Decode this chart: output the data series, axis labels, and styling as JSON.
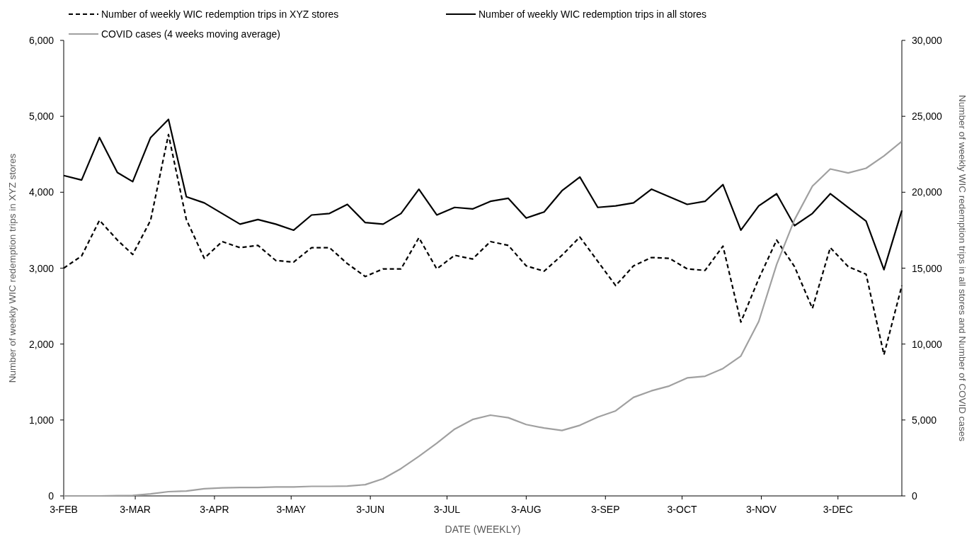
{
  "chart_data": {
    "type": "line",
    "xlabel": "DATE (WEEKLY)",
    "ylabel": "Number of weekly WIC redemption trips in XYZ stores",
    "y2label": "Number of weekly WIC redemption trips in all stores and Number of COVID cases",
    "x": [
      "--02-03",
      "--02-10",
      "--02-17",
      "--02-24",
      "--03-02",
      "--03-09",
      "--03-16",
      "--03-23",
      "--03-30",
      "--04-06",
      "--04-13",
      "--04-20",
      "--04-27",
      "--05-04",
      "--05-11",
      "--05-18",
      "--05-25",
      "--06-01",
      "--06-08",
      "--06-15",
      "--06-22",
      "--06-29",
      "--07-06",
      "--07-13",
      "--07-20",
      "--07-27",
      "--08-03",
      "--08-10",
      "--08-17",
      "--08-24",
      "--08-31",
      "--09-07",
      "--09-14",
      "--09-21",
      "--09-28",
      "--10-05",
      "--10-12",
      "--10-19",
      "--10-26",
      "--11-02",
      "--11-09",
      "--11-16",
      "--11-23",
      "--11-30",
      "--12-07",
      "--12-14",
      "--12-21",
      "--12-28"
    ],
    "xlim": [
      "--02-03",
      "--12-28"
    ],
    "xticks": [
      {
        "value": "--02-03",
        "label": "3-FEB"
      },
      {
        "value": "--03-03",
        "label": "3-MAR"
      },
      {
        "value": "--04-03",
        "label": "3-APR"
      },
      {
        "value": "--05-03",
        "label": "3-MAY"
      },
      {
        "value": "--06-03",
        "label": "3-JUN"
      },
      {
        "value": "--07-03",
        "label": "3-JUL"
      },
      {
        "value": "--08-03",
        "label": "3-AUG"
      },
      {
        "value": "--09-03",
        "label": "3-SEP"
      },
      {
        "value": "--10-03",
        "label": "3-OCT"
      },
      {
        "value": "--11-03",
        "label": "3-NOV"
      },
      {
        "value": "--12-03",
        "label": "3-DEC"
      }
    ],
    "ylim": [
      0,
      6000
    ],
    "yticks": [
      0,
      {
        "value": 1000,
        "label": "1,000"
      },
      {
        "value": 2000,
        "label": "2,000"
      },
      {
        "value": 3000,
        "label": "3,000"
      },
      {
        "value": 4000,
        "label": "4,000"
      },
      {
        "value": 5000,
        "label": "5,000"
      },
      {
        "value": 6000,
        "label": "6,000"
      }
    ],
    "y2lim": [
      0,
      30000
    ],
    "y2ticks": [
      0,
      {
        "value": 5000,
        "label": "5,000"
      },
      {
        "value": 10000,
        "label": "10,000"
      },
      {
        "value": 15000,
        "label": "15,000"
      },
      {
        "value": 20000,
        "label": "20,000"
      },
      {
        "value": 25000,
        "label": "25,000"
      },
      {
        "value": 30000,
        "label": "30,000"
      }
    ],
    "legend": "top",
    "grid": false,
    "series": [
      {
        "name": "Number of weekly WIC redemption trips in XYZ stores",
        "color": "#000000",
        "line_style": "dashed",
        "values": [
          3000,
          3160,
          3630,
          3370,
          3180,
          3630,
          4760,
          3640,
          3130,
          3350,
          3270,
          3300,
          3100,
          3080,
          3270,
          3270,
          3060,
          2890,
          2990,
          2990,
          3400,
          2990,
          3170,
          3120,
          3350,
          3300,
          3030,
          2960,
          3170,
          3410,
          3090,
          2770,
          3030,
          3140,
          3130,
          2990,
          2970,
          3290,
          2290,
          2860,
          3370,
          3020,
          2470,
          3270,
          3020,
          2920,
          1860,
          2770
        ]
      },
      {
        "name": "Number of weekly WIC redemption trips in all stores",
        "color": "#000000",
        "line_style": "solid",
        "axis": "y2",
        "values": [
          21100,
          20800,
          23600,
          21300,
          20700,
          23600,
          24800,
          19700,
          19300,
          18600,
          17900,
          18200,
          17900,
          17500,
          18500,
          18600,
          19200,
          18000,
          17900,
          18600,
          20200,
          18500,
          19000,
          18900,
          19400,
          19600,
          18300,
          18700,
          20100,
          21000,
          19000,
          19100,
          19300,
          20200,
          19700,
          19200,
          19400,
          20500,
          17500,
          19100,
          19900,
          17800,
          18600,
          19900,
          19000,
          18100,
          14900,
          18800
        ]
      },
      {
        "name": "COVID cases (4 weeks moving average)",
        "color": "#a0a0a0",
        "line_style": "solid",
        "axis": "y2",
        "values": [
          0,
          0,
          0,
          20,
          30,
          130,
          280,
          320,
          470,
          530,
          550,
          550,
          590,
          590,
          630,
          630,
          650,
          740,
          1130,
          1800,
          2610,
          3470,
          4400,
          5030,
          5320,
          5150,
          4700,
          4470,
          4310,
          4650,
          5190,
          5600,
          6490,
          6920,
          7240,
          7770,
          7880,
          8390,
          9210,
          11490,
          15240,
          18190,
          20400,
          21530,
          21270,
          21580,
          22390,
          23350
        ]
      }
    ]
  }
}
